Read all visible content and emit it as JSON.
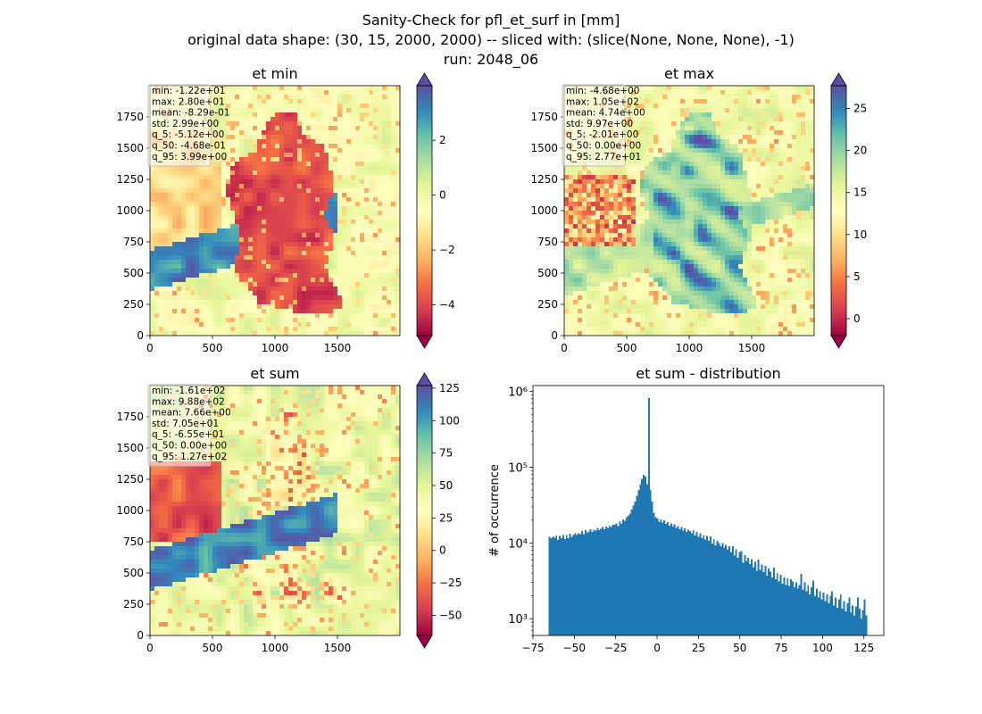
{
  "figure": {
    "title_lines": [
      "Sanity-Check for pfl_et_surf in [mm]",
      "original data shape: (30, 15, 2000, 2000) -- sliced with: (slice(None, None, None), -1)",
      "run: 2048_06"
    ]
  },
  "panels": [
    {
      "title": "et min",
      "xticks": [
        "0",
        "500",
        "1000",
        "1500"
      ],
      "yticks": [
        "0",
        "250",
        "500",
        "750",
        "1000",
        "1250",
        "1500",
        "1750"
      ],
      "stats": [
        "min: -1.22e+01",
        "max: 2.80e+01",
        "mean: -8.29e-01",
        "std: 2.99e+00",
        "q_5: -5.12e+00",
        "q_50: -4.68e-01",
        "q_95: 3.99e+00"
      ],
      "colorbar": {
        "range": [
          -5.12,
          3.99
        ],
        "ticks": [
          "−4",
          "−2",
          "0",
          "2"
        ],
        "tick_values": [
          -4,
          -2,
          0,
          2
        ],
        "cmap": "Spectral"
      }
    },
    {
      "title": "et max",
      "xticks": [
        "0",
        "500",
        "1000",
        "1500"
      ],
      "yticks": [
        "0",
        "250",
        "500",
        "750",
        "1000",
        "1250",
        "1500",
        "1750"
      ],
      "stats": [
        "min: -4.68e+00",
        "max: 1.05e+02",
        "mean: 4.74e+00",
        "std: 9.97e+00",
        "q_5: -2.01e+00",
        "q_50: 0.00e+00",
        "q_95: 2.77e+01"
      ],
      "colorbar": {
        "range": [
          -2.01,
          27.7
        ],
        "ticks": [
          "0",
          "5",
          "10",
          "15",
          "20",
          "25"
        ],
        "tick_values": [
          0,
          5,
          10,
          15,
          20,
          25
        ],
        "cmap": "Spectral"
      }
    },
    {
      "title": "et sum",
      "xticks": [
        "0",
        "500",
        "1000",
        "1500"
      ],
      "yticks": [
        "0",
        "250",
        "500",
        "750",
        "1000",
        "1250",
        "1500",
        "1750"
      ],
      "stats": [
        "min: -1.61e+02",
        "max: 9.88e+02",
        "mean: 7.66e+00",
        "std: 7.05e+01",
        "q_5: -6.55e+01",
        "q_50: 0.00e+00",
        "q_95: 1.27e+02"
      ],
      "colorbar": {
        "range": [
          -65.5,
          127
        ],
        "ticks": [
          "−50",
          "−25",
          "0",
          "25",
          "50",
          "75",
          "100",
          "125"
        ],
        "tick_values": [
          -50,
          -25,
          0,
          25,
          50,
          75,
          100,
          125
        ],
        "cmap": "Spectral"
      }
    }
  ],
  "chart_data": {
    "type": "bar",
    "title": "et sum - distribution",
    "xlabel": "",
    "ylabel": "# of occurrence",
    "yscale": "log",
    "xlim": [
      -75,
      137
    ],
    "ylim": [
      600,
      1200000
    ],
    "xticks": [
      "−75",
      "−50",
      "−25",
      "0",
      "25",
      "50",
      "75",
      "100",
      "125"
    ],
    "xtick_values": [
      -75,
      -50,
      -25,
      0,
      25,
      50,
      75,
      100,
      125
    ],
    "yticks": [
      "10³",
      "10⁴",
      "10⁵",
      "10⁶"
    ],
    "ytick_exponents": [
      3,
      4,
      5,
      6
    ],
    "color": "#1f77b4",
    "bin_range": [
      -65.5,
      127
    ],
    "counts": [
      12000,
      11500,
      12200,
      11800,
      12500,
      11000,
      12300,
      11500,
      12800,
      11300,
      12700,
      11600,
      13200,
      12100,
      12900,
      13400,
      12800,
      13500,
      13100,
      14300,
      13000,
      14800,
      13600,
      14100,
      15200,
      13900,
      15000,
      14600,
      15800,
      14700,
      15300,
      16300,
      15100,
      16500,
      15900,
      17000,
      16200,
      17500,
      17300,
      18200,
      16800,
      19500,
      18000,
      20500,
      19600,
      21800,
      23000,
      24500,
      27500,
      31000,
      35000,
      42000,
      50000,
      60000,
      70000,
      80000,
      75000,
      60000,
      820000,
      50000,
      35000,
      25000,
      22000,
      21000,
      19000,
      20500,
      18500,
      19800,
      17800,
      18800,
      17000,
      18100,
      16500,
      17600,
      15800,
      16800,
      15100,
      16200,
      14500,
      15500,
      13900,
      15000,
      14300,
      13500,
      14800,
      12600,
      13900,
      12000,
      13400,
      11500,
      12800,
      11100,
      12300,
      10600,
      12200,
      9800,
      11300,
      9300,
      10600,
      10000,
      9100,
      9900,
      8700,
      9500,
      8200,
      9000,
      7600,
      9100,
      6800,
      8200,
      6400,
      7600,
      7800,
      5500,
      6900,
      5800,
      6400,
      5300,
      6100,
      4800,
      5600,
      4300,
      6000,
      4400,
      5200,
      4100,
      5000,
      3700,
      4600,
      4200,
      3500,
      4700,
      3300,
      4000,
      3100,
      3800,
      2900,
      3500,
      2800,
      3400,
      2700,
      3300,
      3100,
      2600,
      3000,
      2500,
      2800,
      3900,
      2400,
      3000,
      2300,
      2800,
      2100,
      2600,
      3200,
      2000,
      2500,
      1900,
      2300,
      1800,
      2200,
      1700,
      2100,
      1600,
      2000,
      2300,
      1500,
      1900,
      1400,
      1800,
      2100,
      1350,
      1700,
      1250,
      1600,
      1900,
      1200,
      1500,
      1100,
      1450,
      1900,
      1350,
      1000,
      1300,
      1800,
      1100
    ]
  }
}
